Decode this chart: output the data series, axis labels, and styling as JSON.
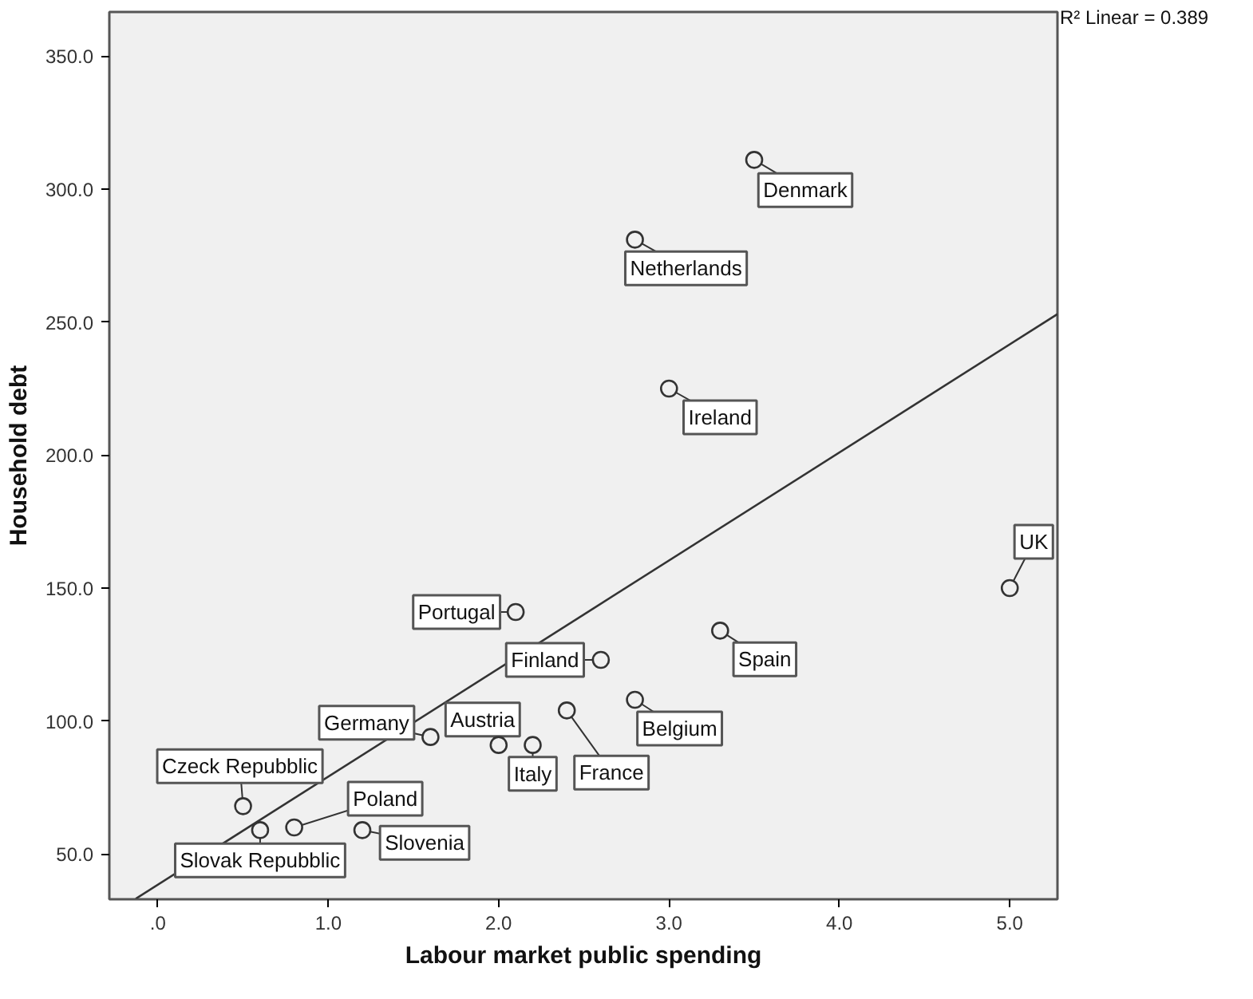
{
  "chart_data": {
    "type": "scatter",
    "xlabel": "Labour market public spending",
    "ylabel": "Household debt",
    "xlim": [
      -0.285,
      5.28
    ],
    "ylim": [
      33,
      366.6
    ],
    "xticks": [
      {
        "value": 0,
        "label": ".0"
      },
      {
        "value": 1,
        "label": "1.0"
      },
      {
        "value": 2,
        "label": "2.0"
      },
      {
        "value": 3,
        "label": "3.0"
      },
      {
        "value": 4,
        "label": "4.0"
      },
      {
        "value": 5,
        "label": "5.0"
      }
    ],
    "yticks": [
      {
        "value": 50,
        "label": "50.0"
      },
      {
        "value": 100,
        "label": "100.0"
      },
      {
        "value": 150,
        "label": "150.0"
      },
      {
        "value": 200,
        "label": "200.0"
      },
      {
        "value": 250,
        "label": "250.0"
      },
      {
        "value": 300,
        "label": "300.0"
      },
      {
        "value": 350,
        "label": "350.0"
      }
    ],
    "grid": false,
    "series": [
      {
        "marker": "circle",
        "color": "#333333",
        "x": [
          3.5,
          2.8,
          3.0,
          5.0,
          3.3,
          2.8,
          2.4,
          2.6,
          2.1,
          1.6,
          2.0,
          2.2,
          0.5,
          0.6,
          0.8,
          1.2
        ],
        "values": [
          311,
          281,
          225,
          150,
          134,
          108,
          104,
          123,
          141,
          94,
          91,
          91,
          68,
          59,
          60,
          59
        ]
      },
      {
        "type": "line",
        "color": "#333333",
        "x": [
          -0.13,
          5.28
        ],
        "values": [
          33.2,
          253
        ]
      }
    ],
    "annotations": [
      {
        "text": "Denmark",
        "x": 3.5,
        "y": 311
      },
      {
        "text": "Netherlands",
        "x": 2.8,
        "y": 281
      },
      {
        "text": "Ireland",
        "x": 3.0,
        "y": 225
      },
      {
        "text": "UK",
        "x": 5.0,
        "y": 150
      },
      {
        "text": "Spain",
        "x": 3.3,
        "y": 134
      },
      {
        "text": "Belgium",
        "x": 2.8,
        "y": 108
      },
      {
        "text": "France",
        "x": 2.4,
        "y": 104
      },
      {
        "text": "Finland",
        "x": 2.6,
        "y": 123
      },
      {
        "text": "Portugal",
        "x": 2.1,
        "y": 141
      },
      {
        "text": "Germany",
        "x": 1.6,
        "y": 94
      },
      {
        "text": "Austria",
        "x": 2.0,
        "y": 91
      },
      {
        "text": "Italy",
        "x": 2.2,
        "y": 91
      },
      {
        "text": "Czeck Repubblic",
        "x": 0.5,
        "y": 68
      },
      {
        "text": "Slovak Repubblic",
        "x": 0.6,
        "y": 59
      },
      {
        "text": "Poland",
        "x": 0.8,
        "y": 60
      },
      {
        "text": "Slovenia",
        "x": 1.2,
        "y": 59
      },
      "R² Linear = 0.389"
    ]
  }
}
